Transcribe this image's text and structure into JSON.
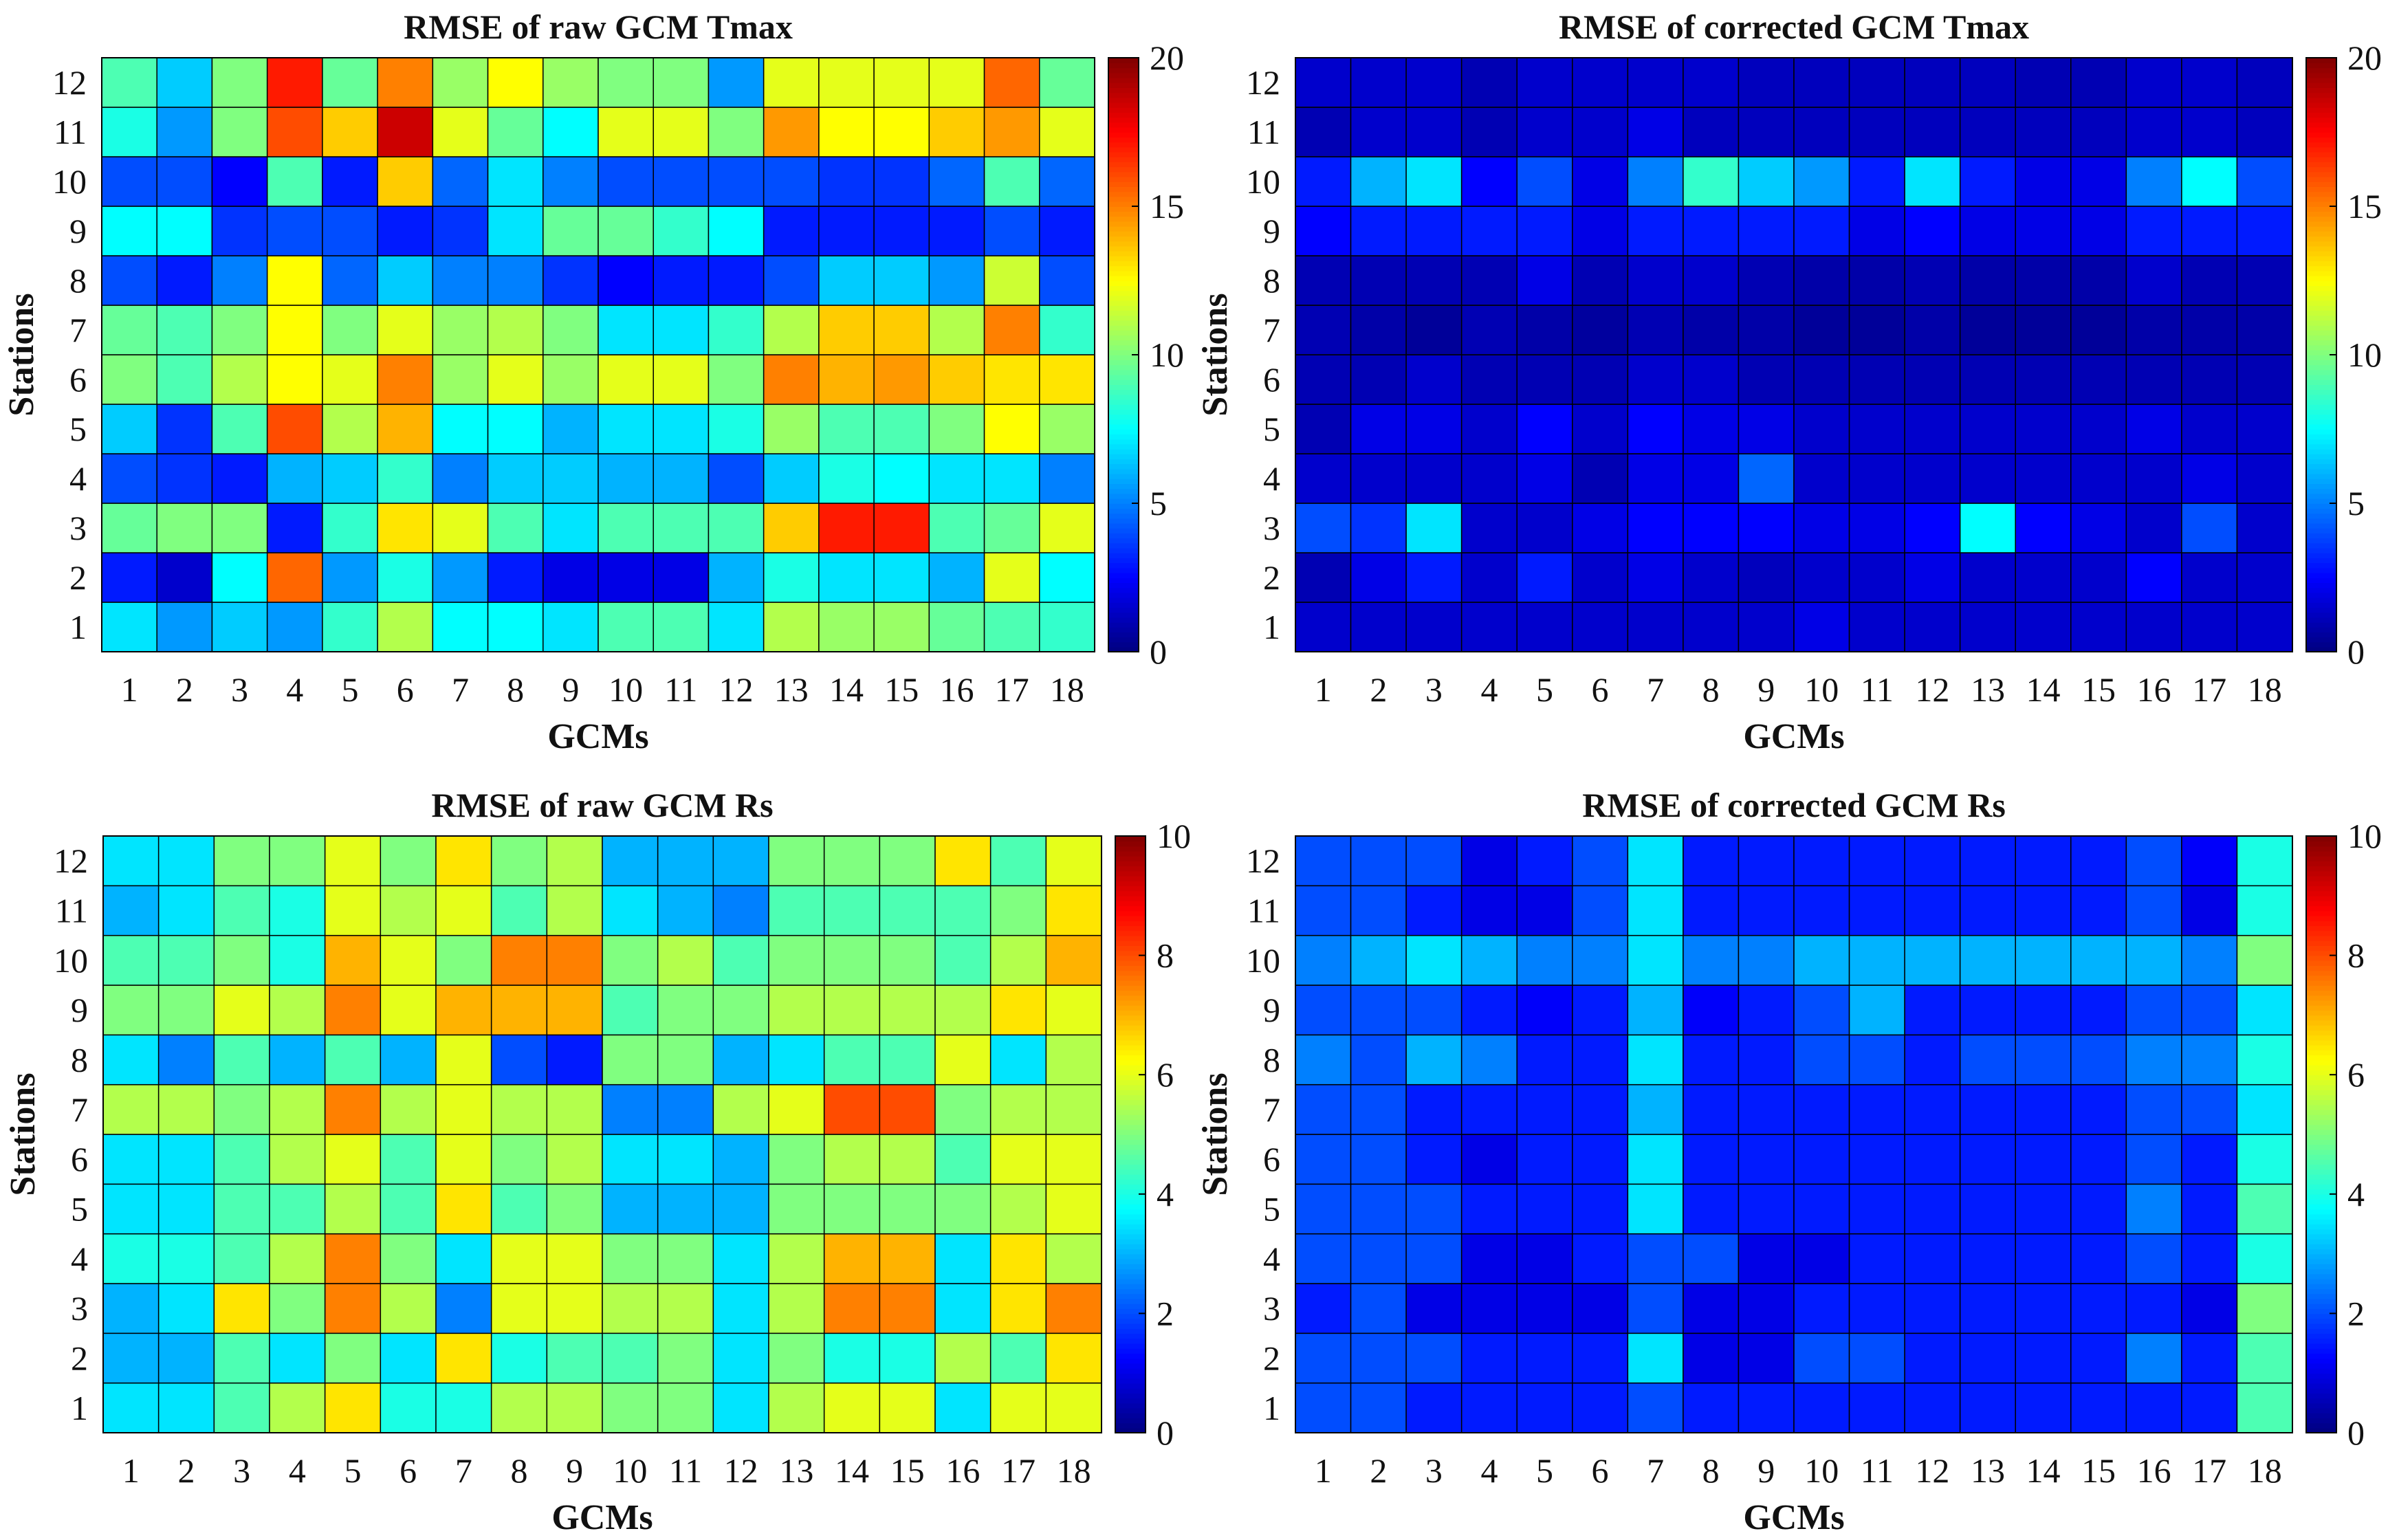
{
  "chart_data": [
    {
      "type": "heatmap",
      "title": "RMSE of raw GCM Tmax",
      "xlabel": "GCMs",
      "ylabel": "Stations",
      "x": [
        "1",
        "2",
        "3",
        "4",
        "5",
        "6",
        "7",
        "8",
        "9",
        "10",
        "11",
        "12",
        "13",
        "14",
        "15",
        "16",
        "17",
        "18"
      ],
      "y": [
        "1",
        "2",
        "3",
        "4",
        "5",
        "6",
        "7",
        "8",
        "9",
        "10",
        "11",
        "12"
      ],
      "clim": [
        0,
        20
      ],
      "colorbar_ticks": [
        "0",
        "5",
        "10",
        "15",
        "20"
      ],
      "colormap": "jet",
      "values": [
        [
          7,
          5.5,
          6.5,
          5.5,
          8.5,
          11,
          7.5,
          7.5,
          7,
          9,
          9,
          7,
          11,
          10.5,
          10.5,
          9.5,
          9,
          8.5
        ],
        [
          3,
          1.5,
          7.5,
          15.5,
          5.5,
          8,
          5.5,
          3,
          2,
          2,
          2,
          6,
          8,
          7,
          7,
          6,
          12,
          7.5
        ],
        [
          9.5,
          10,
          10,
          3,
          8.5,
          13,
          12,
          9,
          7,
          9,
          9,
          9,
          13.5,
          17,
          17,
          9,
          9.5,
          12
        ],
        [
          4,
          3.5,
          3,
          6,
          6.5,
          8.5,
          5,
          6.5,
          6.5,
          6,
          6,
          4,
          6.5,
          8,
          7.5,
          7,
          7,
          5
        ],
        [
          6.5,
          3.5,
          9,
          16,
          11,
          14,
          7.5,
          7.5,
          6,
          7,
          7,
          8,
          10.5,
          9,
          9,
          10,
          12.5,
          10.5
        ],
        [
          10,
          9,
          11,
          12.5,
          12,
          15,
          10.5,
          12,
          10.5,
          12,
          12,
          10,
          15,
          14,
          14.5,
          13.5,
          13,
          13
        ],
        [
          9.5,
          9,
          10,
          12.5,
          10,
          12,
          10.5,
          11,
          10,
          7,
          7,
          8.5,
          11,
          13.5,
          13.5,
          11,
          15,
          8.5
        ],
        [
          4,
          3,
          5,
          12.5,
          4.5,
          6.5,
          5,
          5,
          3.5,
          2.5,
          3,
          3,
          4,
          6.5,
          6.5,
          5.5,
          11.5,
          4
        ],
        [
          7.5,
          7.5,
          3.5,
          4,
          4,
          3,
          3.5,
          7,
          9.5,
          9.5,
          8.5,
          7.5,
          3,
          3,
          3,
          3,
          4,
          3
        ],
        [
          4,
          4,
          2.5,
          9,
          3,
          13.5,
          4.5,
          7,
          5,
          4,
          4,
          4,
          4,
          3.5,
          3.5,
          4.5,
          9,
          4.5
        ],
        [
          8,
          5.5,
          10,
          16,
          13.5,
          18.5,
          12,
          9.5,
          7.5,
          12,
          12,
          10,
          14.5,
          12.5,
          12.5,
          13.5,
          14.5,
          12
        ],
        [
          9,
          6.5,
          10,
          17,
          9.5,
          15,
          10.5,
          12.5,
          10.5,
          10,
          10,
          5.5,
          12,
          12,
          12,
          12,
          15.5,
          9.5
        ]
      ]
    },
    {
      "type": "heatmap",
      "title": "RMSE of corrected GCM Tmax",
      "xlabel": "GCMs",
      "ylabel": "Stations",
      "x": [
        "1",
        "2",
        "3",
        "4",
        "5",
        "6",
        "7",
        "8",
        "9",
        "10",
        "11",
        "12",
        "13",
        "14",
        "15",
        "16",
        "17",
        "18"
      ],
      "y": [
        "1",
        "2",
        "3",
        "4",
        "5",
        "6",
        "7",
        "8",
        "9",
        "10",
        "11",
        "12"
      ],
      "clim": [
        0,
        20
      ],
      "colorbar_ticks": [
        "0",
        "5",
        "10",
        "15",
        "20"
      ],
      "colormap": "jet",
      "values": [
        [
          1.5,
          1.5,
          1.5,
          1.5,
          1.5,
          1.5,
          1.5,
          1.5,
          1.5,
          2,
          1.5,
          1.5,
          1.5,
          1.5,
          1.5,
          1.5,
          1.5,
          1.5
        ],
        [
          1,
          2,
          3,
          1.5,
          3,
          1.5,
          2,
          1.5,
          1.2,
          1.5,
          1.5,
          2,
          1.5,
          1.5,
          1.5,
          2.5,
          1.5,
          1.5
        ],
        [
          4,
          3.5,
          7,
          1.5,
          1.5,
          2,
          2.5,
          2.5,
          2.5,
          2,
          2,
          2.5,
          7.5,
          2.5,
          2,
          1.5,
          4,
          1.5
        ],
        [
          1.5,
          1.5,
          1.5,
          1.5,
          2,
          1,
          2,
          2,
          4.5,
          1.5,
          1.5,
          1.5,
          1.5,
          1.5,
          1.5,
          1.5,
          2,
          1.5
        ],
        [
          1,
          2,
          2,
          1.5,
          2.5,
          1.5,
          2.5,
          2,
          2,
          1.5,
          1.5,
          1.5,
          1.5,
          1.5,
          1.5,
          2,
          1.5,
          1.5
        ],
        [
          1,
          1,
          1.5,
          1,
          1,
          1,
          1.5,
          1.5,
          1,
          1,
          1,
          1,
          1,
          1,
          1,
          1,
          1,
          1
        ],
        [
          1,
          0.8,
          0.5,
          1,
          0.8,
          0.6,
          1,
          0.8,
          0.8,
          0.5,
          0.5,
          0.8,
          0.5,
          0.5,
          0.5,
          0.8,
          0.8,
          0.8
        ],
        [
          1,
          1,
          1,
          1,
          2,
          1,
          1.5,
          1.5,
          1,
          0.8,
          0.8,
          1,
          0.8,
          0.8,
          0.8,
          1.5,
          1,
          1
        ],
        [
          2.5,
          3,
          3,
          3,
          3,
          2,
          3,
          3,
          3,
          3,
          2,
          2.5,
          2,
          2,
          2,
          3,
          3,
          3
        ],
        [
          3,
          6,
          7,
          2.5,
          4,
          2,
          5,
          8.5,
          6.5,
          5.5,
          3,
          7,
          3,
          2,
          2,
          5,
          7.5,
          4
        ],
        [
          1,
          1.5,
          1.5,
          1,
          1.5,
          1.5,
          2,
          1.2,
          1.2,
          1.2,
          1.2,
          1.2,
          1.2,
          1.2,
          1.2,
          1.5,
          1.5,
          1.2
        ],
        [
          1.5,
          1.5,
          1.5,
          1,
          1.5,
          1.5,
          1.5,
          1.5,
          1.2,
          1.2,
          1.2,
          1.2,
          1.2,
          1,
          1,
          1.5,
          1.5,
          1.2
        ]
      ]
    },
    {
      "type": "heatmap",
      "title": "RMSE of raw GCM Rs",
      "xlabel": "GCMs",
      "ylabel": "Stations",
      "x": [
        "1",
        "2",
        "3",
        "4",
        "5",
        "6",
        "7",
        "8",
        "9",
        "10",
        "11",
        "12",
        "13",
        "14",
        "15",
        "16",
        "17",
        "18"
      ],
      "y": [
        "1",
        "2",
        "3",
        "4",
        "5",
        "6",
        "7",
        "8",
        "9",
        "10",
        "11",
        "12"
      ],
      "clim": [
        0,
        10
      ],
      "colorbar_ticks": [
        "0",
        "2",
        "4",
        "6",
        "8",
        "10"
      ],
      "colormap": "jet",
      "values": [
        [
          3.5,
          3.5,
          4.5,
          5.5,
          6.5,
          4,
          4,
          5.5,
          5.5,
          5,
          5,
          3.5,
          5.5,
          6,
          6,
          3.5,
          6,
          6
        ],
        [
          3,
          3,
          4.5,
          3.5,
          5,
          3.5,
          6.5,
          4,
          4.5,
          4.5,
          5,
          3.5,
          5,
          4,
          4,
          5.5,
          4.5,
          6.5
        ],
        [
          3,
          3.5,
          6.5,
          5,
          7.5,
          5.5,
          2.5,
          6,
          6,
          5.5,
          5.5,
          3.5,
          5.5,
          7.5,
          7.5,
          3.5,
          6.5,
          7.5
        ],
        [
          4,
          4,
          4.5,
          5.5,
          7.5,
          5,
          3.5,
          6,
          6,
          5,
          5,
          3.5,
          5.5,
          7,
          7,
          3.5,
          6.5,
          5.5
        ],
        [
          3.5,
          3.5,
          4.5,
          4.5,
          5.5,
          4.5,
          6.5,
          4.5,
          5,
          3,
          3,
          3,
          5,
          5,
          5,
          5,
          5.5,
          6
        ],
        [
          3.5,
          3.5,
          4.5,
          5.5,
          6,
          4.5,
          6,
          5,
          5.5,
          3.5,
          3.5,
          3,
          5,
          5.5,
          5.5,
          4.5,
          6,
          6
        ],
        [
          5.5,
          5.5,
          5,
          5.5,
          7.5,
          5.5,
          6,
          5.5,
          5.5,
          2.5,
          2.5,
          5.5,
          6,
          8,
          8,
          5,
          5.5,
          5.5
        ],
        [
          3.5,
          2.5,
          4.5,
          3,
          4.5,
          3,
          6,
          2,
          1.5,
          5,
          5,
          3,
          3.5,
          4.5,
          4.5,
          6,
          3.5,
          5.5
        ],
        [
          5,
          5,
          6,
          5.5,
          7.5,
          6,
          7,
          7,
          7,
          4.5,
          5,
          5,
          5.5,
          5.5,
          5.5,
          5.5,
          6.5,
          6
        ],
        [
          4.5,
          4.5,
          5,
          4,
          7,
          6,
          5,
          7.5,
          7.5,
          5,
          5.5,
          4.5,
          5,
          5,
          5,
          4.5,
          5.5,
          7
        ],
        [
          3,
          3.5,
          4.5,
          4,
          6,
          5.5,
          6,
          4.5,
          5.5,
          3.5,
          3,
          2.5,
          4.5,
          4.5,
          4.5,
          4.5,
          5,
          6.5
        ],
        [
          3.5,
          3.5,
          5,
          5,
          6,
          5,
          6.5,
          5,
          5.5,
          3,
          3,
          3,
          5,
          5,
          5,
          6.5,
          4.5,
          6
        ]
      ]
    },
    {
      "type": "heatmap",
      "title": "RMSE of corrected GCM Rs",
      "xlabel": "GCMs",
      "ylabel": "Stations",
      "x": [
        "1",
        "2",
        "3",
        "4",
        "5",
        "6",
        "7",
        "8",
        "9",
        "10",
        "11",
        "12",
        "13",
        "14",
        "15",
        "16",
        "17",
        "18"
      ],
      "y": [
        "1",
        "2",
        "3",
        "4",
        "5",
        "6",
        "7",
        "8",
        "9",
        "10",
        "11",
        "12"
      ],
      "clim": [
        0,
        10
      ],
      "colorbar_ticks": [
        "0",
        "2",
        "4",
        "6",
        "8",
        "10"
      ],
      "colormap": "jet",
      "values": [
        [
          2,
          2,
          1.5,
          1.5,
          1.5,
          1.5,
          2,
          1.5,
          1.5,
          1.5,
          1.5,
          1.5,
          1.5,
          1.5,
          1.5,
          1.5,
          1.5,
          4.5
        ],
        [
          2,
          2,
          2,
          1.5,
          1.5,
          1.5,
          3.5,
          1,
          1,
          2,
          2,
          1.5,
          1.5,
          1.5,
          1.5,
          2.5,
          1.5,
          4.5
        ],
        [
          1.5,
          2,
          1,
          1,
          1,
          1,
          2,
          1,
          1,
          1.5,
          1.5,
          1.5,
          1.5,
          1.5,
          1.5,
          1.5,
          1,
          5
        ],
        [
          2,
          2,
          2,
          1,
          1,
          1.5,
          2,
          2,
          1,
          1,
          1.5,
          1.5,
          1.5,
          1.5,
          1.5,
          2,
          1.5,
          4
        ],
        [
          2,
          2,
          2,
          1.5,
          1.5,
          1.5,
          3.5,
          1.5,
          1.5,
          1.5,
          1.5,
          1.5,
          1.5,
          1.5,
          1.5,
          2.5,
          1.5,
          4.5
        ],
        [
          2,
          2,
          1.5,
          1,
          1.5,
          1.5,
          3.5,
          1.5,
          1.5,
          1.5,
          1.5,
          1.5,
          1.5,
          1.5,
          1.5,
          2,
          1.5,
          4
        ],
        [
          2,
          2,
          1.5,
          1.5,
          1.5,
          1.5,
          3,
          1.5,
          1.5,
          1.5,
          1.5,
          1.5,
          1.5,
          1.5,
          1.5,
          2,
          2,
          3.5
        ],
        [
          2.5,
          2,
          3,
          2.5,
          1.5,
          1.5,
          3.5,
          1.5,
          1.5,
          2,
          2,
          1.5,
          2,
          2,
          2,
          2.5,
          2.5,
          4
        ],
        [
          2,
          2,
          2,
          1.5,
          1.2,
          1.5,
          3,
          1.2,
          1.5,
          2,
          3,
          1.5,
          1.5,
          1.5,
          1.5,
          2,
          2,
          3.5
        ],
        [
          2.5,
          3,
          3.5,
          3,
          2.5,
          2.5,
          3.5,
          2.5,
          2.5,
          3,
          3,
          3,
          3,
          3,
          3,
          3,
          2.5,
          5
        ],
        [
          2,
          2,
          1.5,
          1,
          1,
          2,
          3.5,
          1.5,
          1.5,
          1.5,
          1.5,
          1.5,
          1.5,
          1.5,
          1.5,
          2,
          1,
          4
        ],
        [
          2,
          2,
          2,
          1,
          1.5,
          2,
          3.5,
          1.5,
          1.5,
          1.5,
          1.5,
          1.5,
          1.5,
          1.5,
          1.5,
          2,
          1.2,
          4
        ]
      ]
    }
  ]
}
